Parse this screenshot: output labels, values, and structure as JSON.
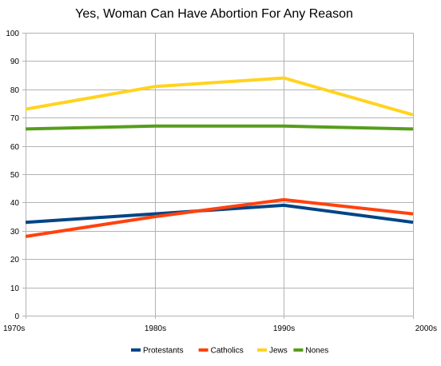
{
  "chart_data": {
    "type": "line",
    "title": "Yes, Woman Can Have Abortion For Any Reason",
    "xlabel": "",
    "ylabel": "",
    "categories": [
      "1970s",
      "1980s",
      "1990s",
      "2000s"
    ],
    "ylim": [
      0,
      100
    ],
    "yticks": [
      0,
      10,
      20,
      30,
      40,
      50,
      60,
      70,
      80,
      90,
      100
    ],
    "grid": true,
    "legend_position": "bottom",
    "series": [
      {
        "name": "Protestants",
        "color": "#004586",
        "values": [
          33,
          36,
          39,
          33
        ]
      },
      {
        "name": "Catholics",
        "color": "#ff420e",
        "values": [
          28,
          35,
          41,
          36
        ]
      },
      {
        "name": "Jews",
        "color": "#ffd320",
        "values": [
          73,
          81,
          84,
          71
        ]
      },
      {
        "name": "Nones",
        "color": "#579d1c",
        "values": [
          66,
          67,
          67,
          66
        ]
      }
    ]
  }
}
